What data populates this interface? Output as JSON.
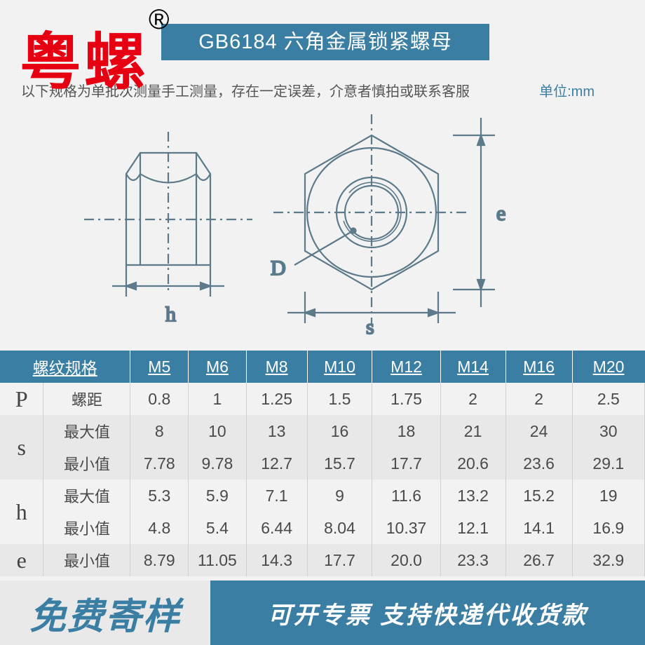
{
  "brand": {
    "text": "粤螺",
    "mark": "®",
    "color": "#e60012"
  },
  "title": "GB6184 六角金属锁紧螺母",
  "note": "以下规格为单批次测量手工测量，存在一定误差，介意者慎拍或联系客服",
  "unit": "单位:mm",
  "diagram": {
    "labels": {
      "h": "h",
      "D": "D",
      "s": "s",
      "e": "e"
    },
    "stroke": "#5c7a8a",
    "text_color": "#3a7ea3"
  },
  "table": {
    "header_bg": "#3a7ea3",
    "header_fg": "#ffffff",
    "columns": [
      "螺纹规格",
      "M5",
      "M6",
      "M8",
      "M10",
      "M12",
      "M14",
      "M16",
      "M20"
    ],
    "rows": [
      {
        "group": "P",
        "label": "螺距",
        "values": [
          "0.8",
          "1",
          "1.25",
          "1.5",
          "1.75",
          "2",
          "2",
          "2.5"
        ],
        "alt": false
      },
      {
        "group": "s",
        "label": "最大值",
        "values": [
          "8",
          "10",
          "13",
          "16",
          "18",
          "21",
          "24",
          "30"
        ],
        "alt": true
      },
      {
        "group": "",
        "label": "最小值",
        "values": [
          "7.78",
          "9.78",
          "12.7",
          "15.7",
          "17.7",
          "20.6",
          "23.6",
          "29.1"
        ],
        "alt": true
      },
      {
        "group": "h",
        "label": "最大值",
        "values": [
          "5.3",
          "5.9",
          "7.1",
          "9",
          "11.6",
          "13.2",
          "15.2",
          "19"
        ],
        "alt": false
      },
      {
        "group": "",
        "label": "最小值",
        "values": [
          "4.8",
          "5.4",
          "6.44",
          "8.04",
          "10.37",
          "12.1",
          "14.1",
          "16.9"
        ],
        "alt": false
      },
      {
        "group": "e",
        "label": "最小值",
        "values": [
          "8.79",
          "11.05",
          "14.3",
          "17.7",
          "20.0",
          "23.3",
          "26.7",
          "32.9"
        ],
        "alt": true
      }
    ],
    "col_widths": [
      "60",
      "120",
      "80",
      "80",
      "84",
      "90",
      "94",
      "90",
      "92",
      "100"
    ]
  },
  "footer": {
    "left": "免费寄样",
    "right": "可开专票 支持快递代收货款"
  }
}
